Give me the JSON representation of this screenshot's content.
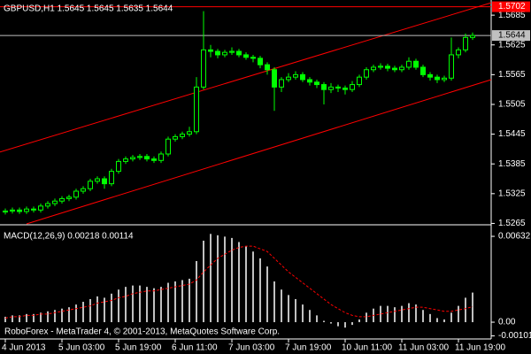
{
  "chart_data": [
    {
      "type": "candlestick",
      "title": "GBPUSD,H1  1.5645 1.5645 1.5635 1.5644",
      "color": "#00ff00",
      "xlim": [
        -0.75,
        68.625
      ],
      "ylim": [
        1.5264,
        1.5712
      ],
      "yticks": [
        1.5685,
        1.5625,
        1.5565,
        1.5505,
        1.5445,
        1.5385,
        1.5325,
        1.5265
      ],
      "open": [
        1.5288,
        1.529,
        1.5292,
        1.5289,
        1.5294,
        1.5292,
        1.53,
        1.5305,
        1.531,
        1.5315,
        1.5318,
        1.533,
        1.5335,
        1.535,
        1.5355,
        1.5345,
        1.537,
        1.539,
        1.5395,
        1.5398,
        1.54,
        1.5395,
        1.5392,
        1.5405,
        1.5435,
        1.544,
        1.5445,
        1.545,
        1.554,
        1.5615,
        1.5612,
        1.5605,
        1.561,
        1.5612,
        1.5605,
        1.56,
        1.5598,
        1.5585,
        1.5575,
        1.554,
        1.5555,
        1.556,
        1.5565,
        1.5555,
        1.555,
        1.5545,
        1.5535,
        1.554,
        1.5538,
        1.5535,
        1.5545,
        1.556,
        1.5575,
        1.558,
        1.5582,
        1.5578,
        1.5575,
        1.558,
        1.5592,
        1.558,
        1.5565,
        1.556,
        1.5555,
        1.5558,
        1.5605,
        1.5615,
        1.564
      ],
      "high": [
        1.5295,
        1.5297,
        1.5297,
        1.5299,
        1.5299,
        1.5305,
        1.531,
        1.5315,
        1.532,
        1.5323,
        1.5335,
        1.534,
        1.5355,
        1.536,
        1.536,
        1.5375,
        1.5395,
        1.54,
        1.5403,
        1.5405,
        1.5405,
        1.54,
        1.541,
        1.544,
        1.5445,
        1.545,
        1.546,
        1.556,
        1.5693,
        1.5625,
        1.5617,
        1.5615,
        1.562,
        1.5617,
        1.561,
        1.5605,
        1.5603,
        1.559,
        1.558,
        1.556,
        1.5568,
        1.5572,
        1.557,
        1.556,
        1.5555,
        1.555,
        1.5548,
        1.5545,
        1.5543,
        1.5552,
        1.5565,
        1.558,
        1.5585,
        1.5588,
        1.5587,
        1.5583,
        1.5585,
        1.56,
        1.5597,
        1.5585,
        1.557,
        1.5565,
        1.5563,
        1.564,
        1.562,
        1.5648,
        1.565
      ],
      "low": [
        1.5283,
        1.5285,
        1.5284,
        1.5284,
        1.5287,
        1.5287,
        1.5295,
        1.53,
        1.5305,
        1.531,
        1.5313,
        1.5325,
        1.533,
        1.5345,
        1.5335,
        1.534,
        1.5365,
        1.5385,
        1.539,
        1.5393,
        1.539,
        1.5387,
        1.5387,
        1.54,
        1.543,
        1.5435,
        1.544,
        1.5445,
        1.5535,
        1.56,
        1.5598,
        1.56,
        1.5605,
        1.56,
        1.5595,
        1.559,
        1.5578,
        1.5565,
        1.5492,
        1.553,
        1.555,
        1.5555,
        1.555,
        1.5543,
        1.5538,
        1.5505,
        1.5528,
        1.553,
        1.5525,
        1.553,
        1.554,
        1.5555,
        1.557,
        1.5575,
        1.5572,
        1.557,
        1.557,
        1.5575,
        1.5575,
        1.556,
        1.5553,
        1.5548,
        1.555,
        1.5553,
        1.5598,
        1.561,
        1.5635
      ],
      "close": [
        1.529,
        1.5292,
        1.5289,
        1.5294,
        1.5292,
        1.53,
        1.5305,
        1.531,
        1.5315,
        1.5318,
        1.533,
        1.5335,
        1.535,
        1.5355,
        1.5345,
        1.537,
        1.539,
        1.5395,
        1.5398,
        1.54,
        1.5395,
        1.5392,
        1.5405,
        1.5435,
        1.544,
        1.5445,
        1.545,
        1.554,
        1.5615,
        1.5612,
        1.5605,
        1.561,
        1.5612,
        1.5605,
        1.56,
        1.5598,
        1.5585,
        1.5575,
        1.554,
        1.5555,
        1.556,
        1.5565,
        1.5555,
        1.555,
        1.5545,
        1.5535,
        1.554,
        1.5538,
        1.5535,
        1.5545,
        1.556,
        1.5575,
        1.558,
        1.5582,
        1.5578,
        1.5575,
        1.558,
        1.5592,
        1.558,
        1.5565,
        1.556,
        1.5555,
        1.5558,
        1.5605,
        1.5615,
        1.564,
        1.5644
      ],
      "hlines": [
        {
          "value": 1.5702,
          "color": "#ff0000"
        },
        {
          "value": 1.5644,
          "color": "#c0c0c0"
        }
      ],
      "trendlines": [
        {
          "x": [
            -0.75,
            68.625
          ],
          "y": [
            1.5409,
            1.571
          ],
          "color": "#ff0000"
        },
        {
          "x": [
            3.0,
            68.625
          ],
          "y": [
            1.5264,
            1.5555
          ],
          "color": "#ff0000"
        }
      ]
    },
    {
      "type": "macd",
      "title": "MACD(12,26,9) 0.00218 0.00114",
      "annotation": "RoboForex - MetaTrader 4, © 2001-2013, MetaQuotes Software Corp.",
      "xlim": [
        -0.75,
        68.625
      ],
      "ylim": [
        -0.00117,
        0.00704
      ],
      "yticks": [
        0.00632,
        {
          "value": 0,
          "label": "0.00"
        },
        -0.00101
      ],
      "xticks": [
        {
          "value": 0,
          "label": "4 Jun 2013"
        },
        {
          "value": 8,
          "label": "5 Jun 03:00"
        },
        {
          "value": 16,
          "label": "5 Jun 19:00"
        },
        {
          "value": 24,
          "label": "6 Jun 11:00"
        },
        {
          "value": 32,
          "label": "7 Jun 03:00"
        },
        {
          "value": 40,
          "label": "7 Jun 19:00"
        },
        {
          "value": 48,
          "label": "10 Jun 11:00"
        },
        {
          "value": 56,
          "label": "11 Jun 03:00"
        },
        {
          "value": 64,
          "label": "11 Jun 19:00"
        }
      ],
      "histogram": {
        "color": "#c0c0c0",
        "values": [
          0.0004,
          0.0005,
          0.0005,
          0.0006,
          0.0006,
          0.0007,
          0.0008,
          0.0009,
          0.001,
          0.0011,
          0.0013,
          0.0015,
          0.0017,
          0.0019,
          0.0018,
          0.0021,
          0.0024,
          0.0026,
          0.0027,
          0.0027,
          0.0026,
          0.0025,
          0.0026,
          0.0029,
          0.003,
          0.0031,
          0.0032,
          0.0045,
          0.006,
          0.0065,
          0.0064,
          0.0063,
          0.0062,
          0.0059,
          0.0056,
          0.0052,
          0.0047,
          0.0041,
          0.003,
          0.0024,
          0.002,
          0.0017,
          0.0013,
          0.0009,
          0.0005,
          0.0001,
          -0.0001,
          -0.0003,
          -0.0004,
          -0.0002,
          0.0002,
          0.0007,
          0.001,
          0.0012,
          0.0012,
          0.0011,
          0.0012,
          0.0014,
          0.0013,
          0.0009,
          0.0006,
          0.0003,
          0.0002,
          0.0007,
          0.0012,
          0.0018,
          0.00218
        ]
      },
      "signal": {
        "color": "#ff0000",
        "values": [
          0.0003,
          0.0004,
          0.0004,
          0.0005,
          0.0005,
          0.0006,
          0.0006,
          0.0007,
          0.0008,
          0.0009,
          0.001,
          0.0011,
          0.0012,
          0.0014,
          0.0015,
          0.0016,
          0.0018,
          0.0019,
          0.0021,
          0.0022,
          0.0023,
          0.0023,
          0.0024,
          0.0025,
          0.0026,
          0.0027,
          0.0028,
          0.0031,
          0.0037,
          0.0042,
          0.0047,
          0.005,
          0.0053,
          0.0055,
          0.0056,
          0.0056,
          0.0054,
          0.0052,
          0.0047,
          0.0042,
          0.0037,
          0.0033,
          0.0029,
          0.0025,
          0.0021,
          0.0017,
          0.0013,
          0.001,
          0.0007,
          0.0005,
          0.0004,
          0.0004,
          0.0005,
          0.0006,
          0.0007,
          0.0008,
          0.0009,
          0.001,
          0.0011,
          0.0011,
          0.001,
          0.0009,
          0.0008,
          0.0008,
          0.0009,
          0.001,
          0.00114
        ]
      }
    }
  ]
}
